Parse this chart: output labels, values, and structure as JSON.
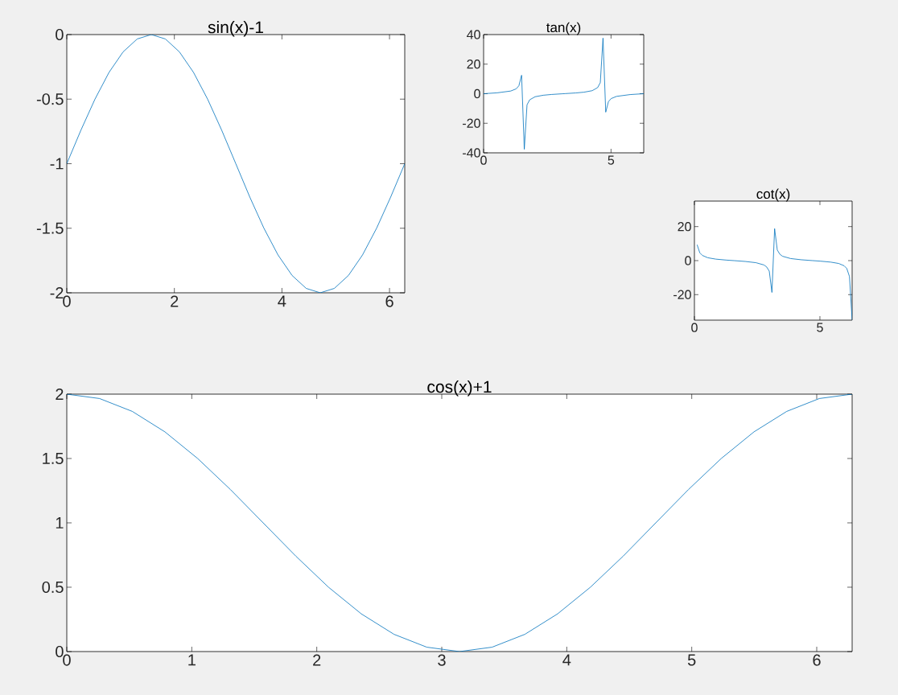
{
  "chart_data": [
    {
      "type": "line",
      "title": "sin(x)-1",
      "xlim": [
        0,
        6.2832
      ],
      "ylim": [
        -2,
        0
      ],
      "xticks": [
        0,
        2,
        4,
        6
      ],
      "yticks": [
        -2,
        -1.5,
        -1,
        -0.5,
        0
      ],
      "grid": false,
      "series": [
        {
          "color": "#0072bd",
          "x": [
            0,
            0.262,
            0.524,
            0.785,
            1.047,
            1.309,
            1.571,
            1.833,
            2.094,
            2.356,
            2.618,
            2.88,
            3.142,
            3.403,
            3.665,
            3.927,
            4.189,
            4.451,
            4.712,
            4.974,
            5.236,
            5.498,
            5.76,
            6.021,
            6.283
          ],
          "values": [
            -1,
            -0.741,
            -0.5,
            -0.293,
            -0.134,
            -0.034,
            0,
            -0.034,
            -0.134,
            -0.293,
            -0.5,
            -0.741,
            -1,
            -1.259,
            -1.5,
            -1.707,
            -1.866,
            -1.966,
            -2,
            -1.966,
            -1.866,
            -1.707,
            -1.5,
            -1.259,
            -1
          ]
        }
      ]
    },
    {
      "type": "line",
      "title": "tan(x)",
      "xlim": [
        0,
        6.2832
      ],
      "ylim": [
        -40,
        40
      ],
      "xticks": [
        0,
        5
      ],
      "yticks": [
        -40,
        -20,
        0,
        20,
        40
      ],
      "series": [
        {
          "color": "#0072bd",
          "x": [
            0,
            0.532,
            1.065,
            1.278,
            1.384,
            1.491,
            1.597,
            1.704,
            1.81,
            2.023,
            2.343,
            2.662,
            3.088,
            3.195,
            3.621,
            3.94,
            4.26,
            4.473,
            4.579,
            4.686,
            4.792,
            4.899,
            5.005,
            5.218,
            5.75,
            6.283
          ],
          "values": [
            0,
            0.591,
            1.807,
            3.29,
            5.36,
            12.49,
            -37.6,
            -7.47,
            -4.1,
            -2.05,
            -1.03,
            -0.52,
            -0.053,
            0.053,
            0.52,
            1.03,
            2.05,
            4.1,
            7.47,
            37.6,
            -12.49,
            -5.36,
            -3.29,
            -1.807,
            -0.591,
            0
          ]
        }
      ]
    },
    {
      "type": "line",
      "title": "cot(x)",
      "xlim": [
        0,
        6.2832
      ],
      "ylim": [
        -35,
        35
      ],
      "xticks": [
        0,
        5
      ],
      "yticks": [
        -20,
        0,
        20
      ],
      "series": [
        {
          "color": "#0072bd",
          "x": [
            0.1065,
            0.213,
            0.319,
            0.532,
            0.852,
            1.278,
            1.597,
            2.023,
            2.449,
            2.769,
            2.875,
            2.982,
            3.088,
            3.195,
            3.301,
            3.408,
            3.514,
            3.834,
            4.26,
            4.686,
            5.005,
            5.431,
            5.75,
            5.963,
            6.07,
            6.177,
            6.283
          ],
          "values": [
            9.35,
            4.62,
            3.03,
            1.69,
            0.88,
            0.3,
            -0.027,
            -0.49,
            -1.21,
            -2.55,
            -3.67,
            -6.21,
            -18.7,
            18.8,
            6.21,
            3.67,
            2.55,
            1.21,
            0.49,
            0.027,
            -0.3,
            -0.88,
            -1.69,
            -3.03,
            -4.62,
            -9.35,
            -35
          ]
        }
      ]
    },
    {
      "type": "line",
      "title": "cos(x)+1",
      "xlim": [
        0,
        6.2832
      ],
      "ylim": [
        0,
        2
      ],
      "xticks": [
        0,
        1,
        2,
        3,
        4,
        5,
        6
      ],
      "yticks": [
        0,
        0.5,
        1,
        1.5,
        2
      ],
      "series": [
        {
          "color": "#0072bd",
          "x": [
            0,
            0.262,
            0.524,
            0.785,
            1.047,
            1.309,
            1.571,
            1.833,
            2.094,
            2.356,
            2.618,
            2.88,
            3.142,
            3.403,
            3.665,
            3.927,
            4.189,
            4.451,
            4.712,
            4.974,
            5.236,
            5.498,
            5.76,
            6.021,
            6.283
          ],
          "values": [
            2,
            1.966,
            1.866,
            1.707,
            1.5,
            1.259,
            1,
            0.741,
            0.5,
            0.293,
            0.134,
            0.034,
            0,
            0.034,
            0.134,
            0.293,
            0.5,
            0.741,
            1,
            1.259,
            1.5,
            1.707,
            1.866,
            1.966,
            2
          ]
        }
      ]
    }
  ]
}
